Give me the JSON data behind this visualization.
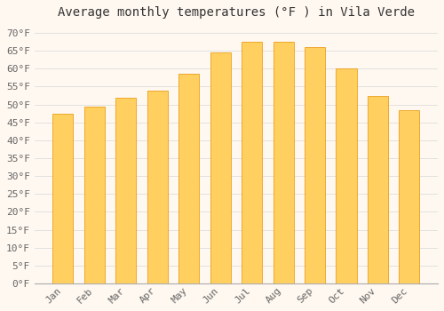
{
  "title": "Average monthly temperatures (°F ) in Vila Verde",
  "months": [
    "Jan",
    "Feb",
    "Mar",
    "Apr",
    "May",
    "Jun",
    "Jul",
    "Aug",
    "Sep",
    "Oct",
    "Nov",
    "Dec"
  ],
  "values": [
    47.5,
    49.5,
    52.0,
    54.0,
    58.5,
    64.5,
    67.5,
    67.5,
    66.0,
    60.0,
    52.5,
    48.5
  ],
  "bar_color_top": "#FFA500",
  "bar_color_bottom": "#FFD060",
  "bar_edge_color": "#E89000",
  "background_color": "#FFF8F0",
  "grid_color": "#DDDDDD",
  "text_color": "#666666",
  "title_color": "#333333",
  "ylim": [
    0,
    72
  ],
  "yticks": [
    0,
    5,
    10,
    15,
    20,
    25,
    30,
    35,
    40,
    45,
    50,
    55,
    60,
    65,
    70
  ],
  "title_fontsize": 10,
  "tick_fontsize": 8,
  "bar_width": 0.65
}
